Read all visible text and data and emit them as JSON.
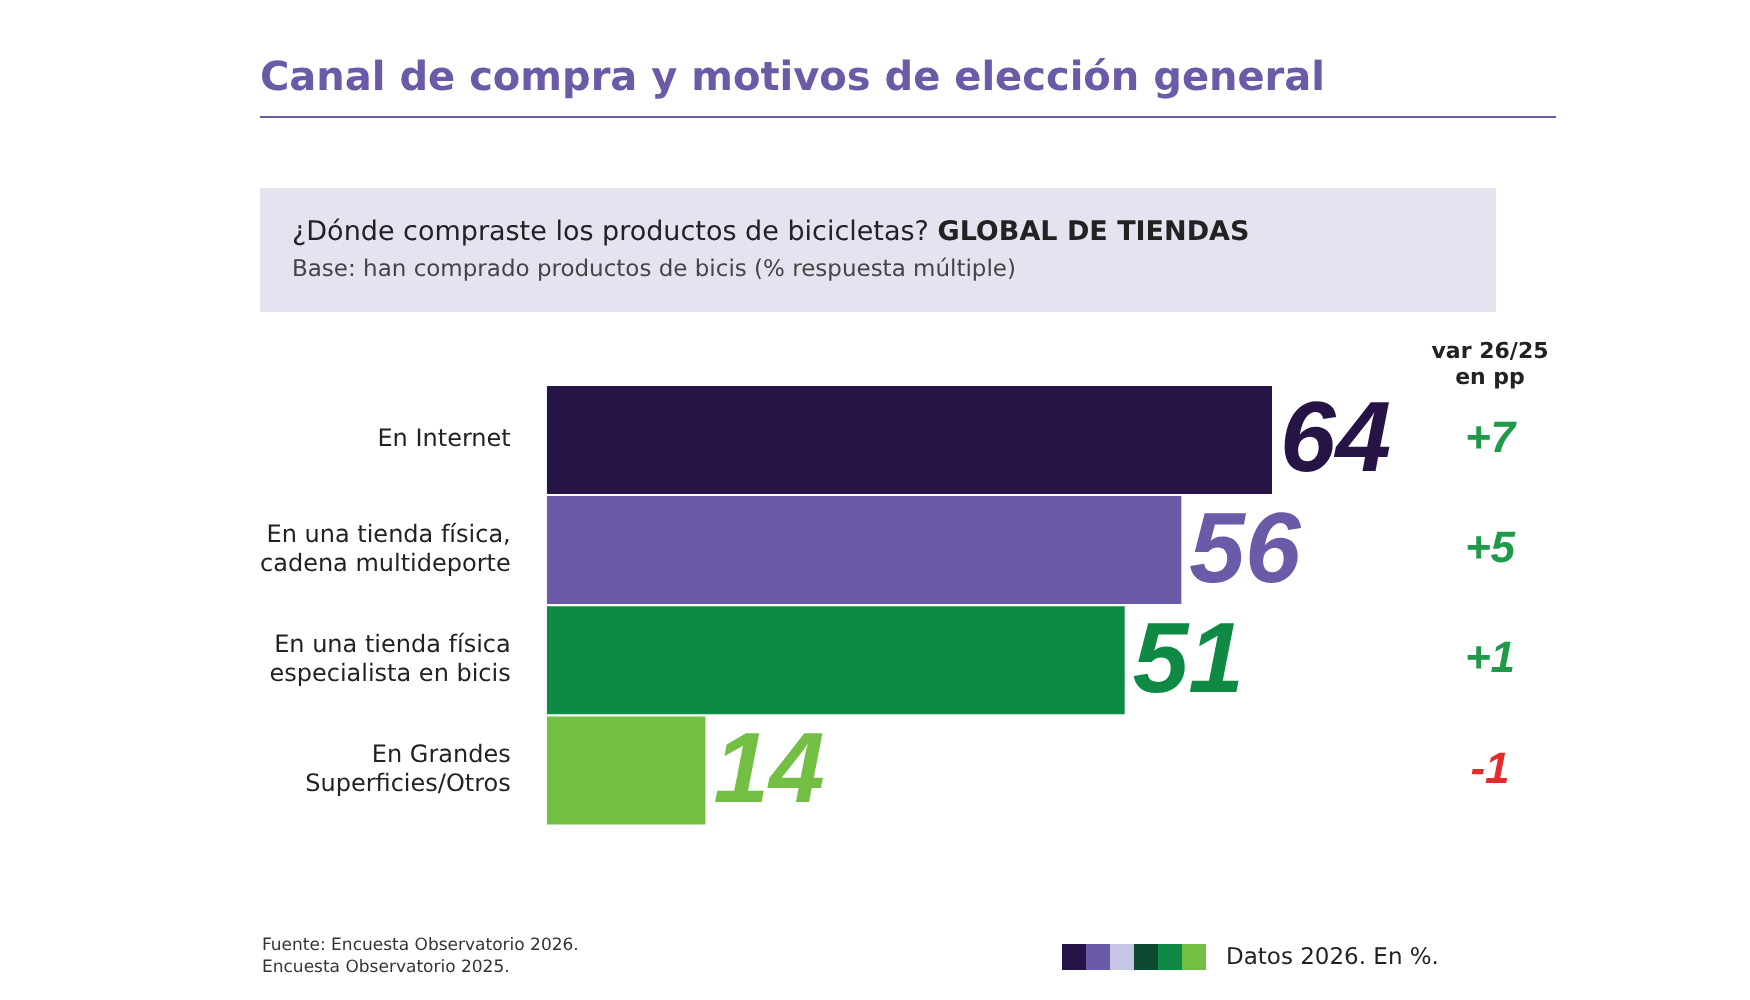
{
  "chart_data": {
    "type": "bar",
    "orientation": "horizontal",
    "data_labels": true,
    "legend": false,
    "title": "Canal de compra y motivos de elección general",
    "subtitle": "¿Dónde compraste los productos de bicicletas?",
    "categories": [
      "En Internet",
      "En una tienda física,\ncadena multideporte",
      "En una tienda física\nespecialista en bicis",
      "En Grandes\nSuperficies/Otros"
    ],
    "values": [
      64,
      56,
      51,
      14
    ],
    "colors": [
      "#261447",
      "#6a5aa8",
      "#0e8a44",
      "#72bf44"
    ],
    "annotations": [
      "GLOBAL DE TIENDAS",
      "Base: han comprado productos de bicis (% respuesta múltiple)",
      "var 26/25 en pp",
      "+7",
      "+5",
      "+1",
      "-1",
      "Fuente: Encuesta Observatorio 2026.",
      "Encuesta Observatorio 2025.",
      "Datos 2026. En %."
    ]
  }
}
